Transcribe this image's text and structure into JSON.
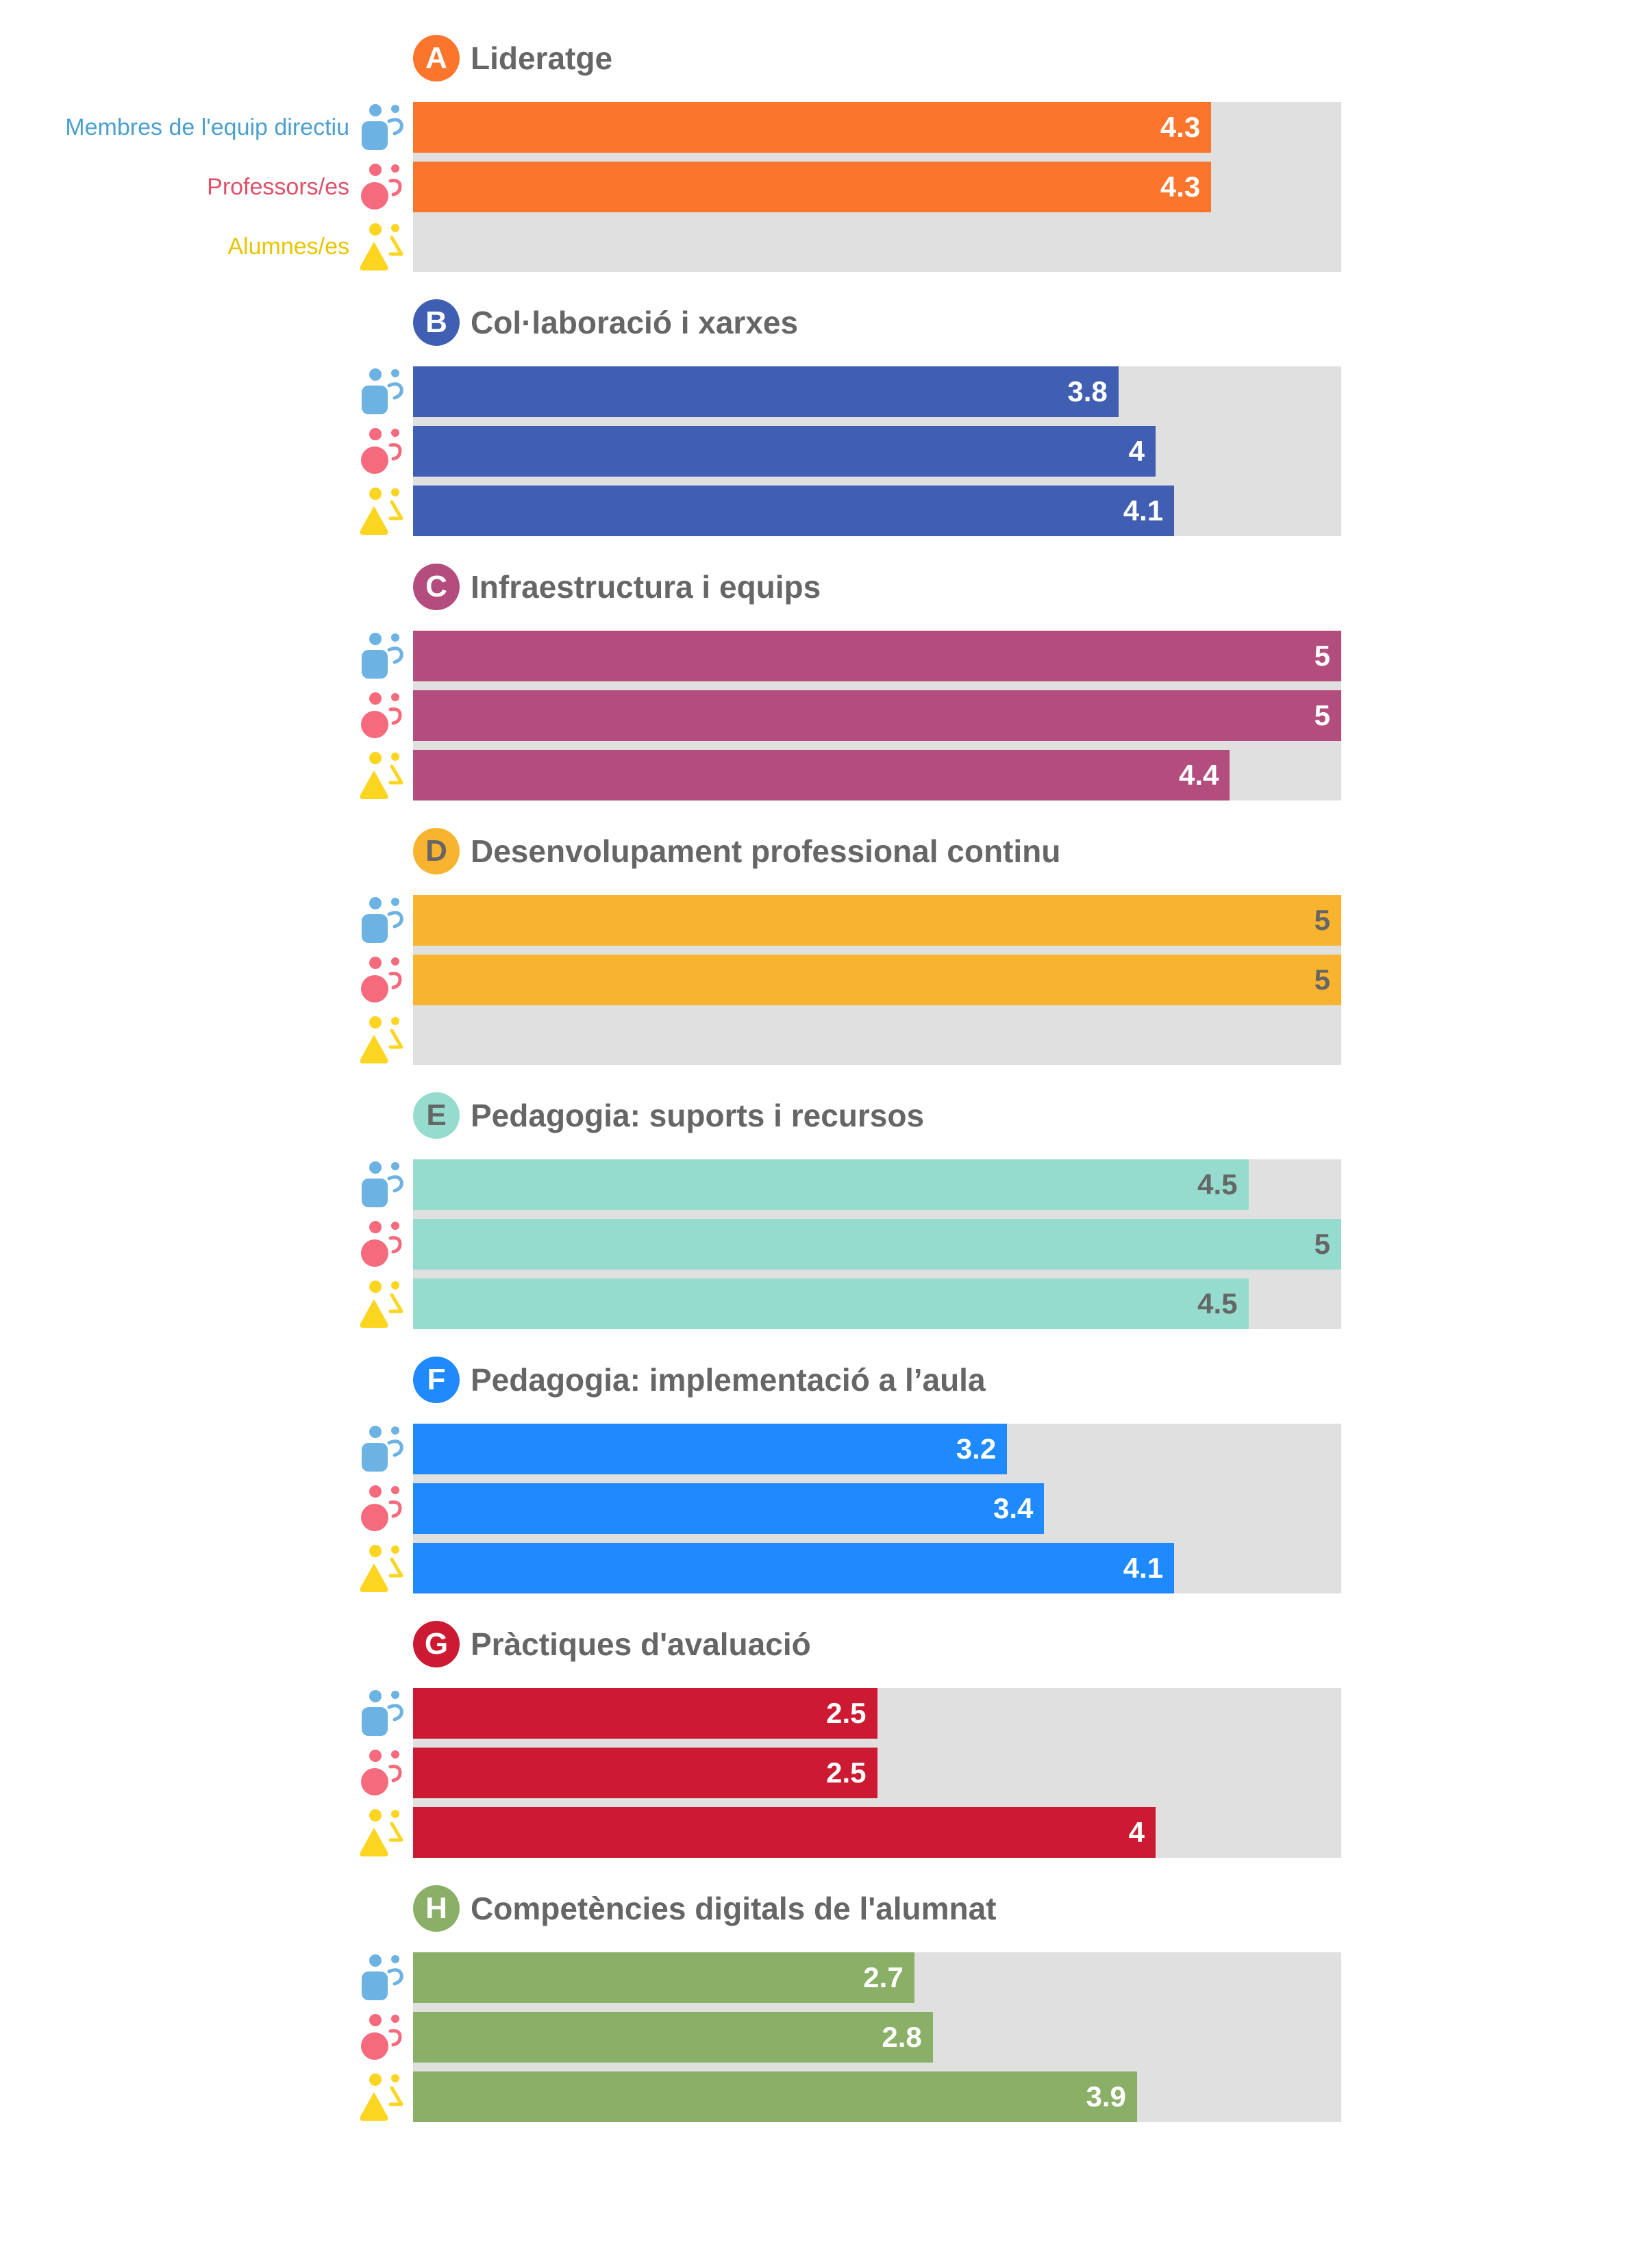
{
  "chart_data": {
    "type": "bar",
    "orientation": "horizontal",
    "xlim": [
      0,
      5
    ],
    "grid": false,
    "legend_position": "left",
    "series": [
      {
        "name": "Membres de l'equip directiu",
        "color": "#6cb2e2",
        "icon": "leader-person-icon",
        "values": [
          4.3,
          3.8,
          5,
          5,
          4.5,
          3.2,
          2.5,
          2.7
        ]
      },
      {
        "name": "Professors/es",
        "color": "#f66a7d",
        "label_color": "#e05068",
        "icon": "teacher-person-icon",
        "values": [
          4.3,
          4,
          5,
          5,
          5,
          3.4,
          2.5,
          2.8
        ]
      },
      {
        "name": "Alumnes/es",
        "color": "#fbd51f",
        "label_color": "#e8c400",
        "icon": "student-person-icon",
        "values": [
          null,
          4.1,
          4.4,
          null,
          4.5,
          4.1,
          4,
          3.9
        ]
      }
    ],
    "categories": [
      {
        "letter": "A",
        "title": "Lideratge",
        "color": "#fb752d",
        "text_color": "#ffffff"
      },
      {
        "letter": "B",
        "title": "Col·laboració i xarxes",
        "color": "#405fb2",
        "text_color": "#ffffff"
      },
      {
        "letter": "C",
        "title": "Infraestructura i equips",
        "color": "#b34d7d",
        "text_color": "#ffffff"
      },
      {
        "letter": "D",
        "title": "Desenvolupament professional continu",
        "color": "#f8b42f",
        "text_color": "#666666"
      },
      {
        "letter": "E",
        "title": "Pedagogia: suports i recursos",
        "color": "#95dccf",
        "text_color": "#666666"
      },
      {
        "letter": "F",
        "title": "Pedagogia: implementació a l’aula",
        "color": "#1e8afd",
        "text_color": "#ffffff"
      },
      {
        "letter": "G",
        "title": "Pràctiques d'avaluació",
        "color": "#cb1a31",
        "text_color": "#ffffff"
      },
      {
        "letter": "H",
        "title": "Competències digitals de l'alumnat",
        "color": "#8aaf67",
        "text_color": "#ffffff"
      }
    ],
    "track_color": "#e0e0e0",
    "title_color": "#666666"
  }
}
